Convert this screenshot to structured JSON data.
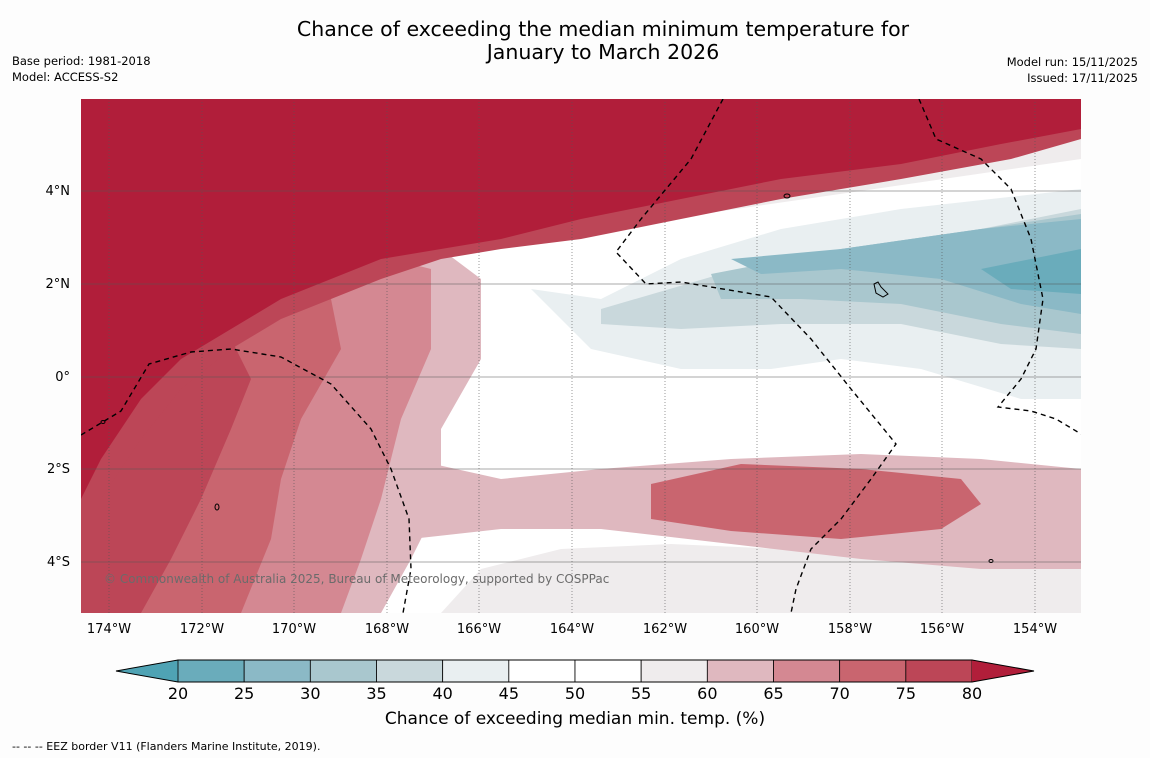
{
  "title": {
    "line1": "Chance of exceeding the median minimum temperature for",
    "line2": "January to March 2026"
  },
  "meta": {
    "base_period": "Base period: 1981-2018",
    "model": "Model: ACCESS-S2",
    "model_run": "Model run: 15/11/2025",
    "issued": "Issued: 17/11/2025"
  },
  "map": {
    "lat_labels": [
      "4°N",
      "2°N",
      "0°",
      "2°S",
      "4°S"
    ],
    "lon_labels": [
      "174°W",
      "172°W",
      "170°W",
      "168°W",
      "166°W",
      "164°W",
      "162°W",
      "160°W",
      "158°W",
      "156°W",
      "154°W"
    ],
    "copyright": "© Commonwealth of Australia 2025, Bureau of Meteorology, supported by COSPPac"
  },
  "colorbar": {
    "ticks": [
      "20",
      "25",
      "30",
      "35",
      "40",
      "45",
      "50",
      "55",
      "60",
      "65",
      "70",
      "75",
      "80"
    ],
    "colors": [
      "#6aacbb",
      "#8bb9c6",
      "#a9c7ce",
      "#c9d8dc",
      "#e9eff1",
      "#ffffff",
      "#ffffff",
      "#efeced",
      "#dfb8bf",
      "#d48892",
      "#c9656f",
      "#bc4657"
    ],
    "under_color": "#4fa3b4",
    "over_color": "#b11e3a",
    "label": "Chance of exceeding median min. temp. (%)"
  },
  "footer": "--  --  -- EEZ border V11 (Flanders Marine Institute, 2019)."
}
